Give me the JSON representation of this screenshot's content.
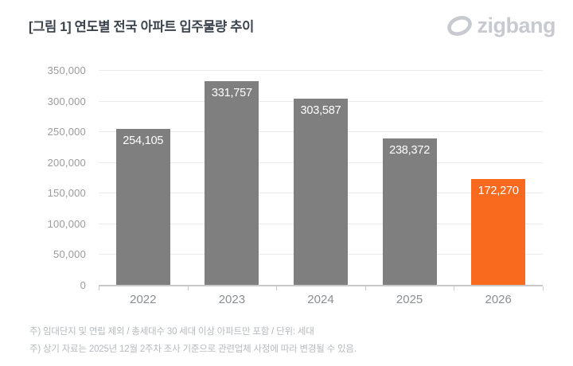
{
  "header": {
    "title": "[그림 1] 연도별 전국 아파트 입주물량 추이",
    "logo_text": "zigbang"
  },
  "chart_data": {
    "type": "bar",
    "title": "[그림 1] 연도별 전국 아파트 입주물량 추이",
    "categories": [
      "2022",
      "2023",
      "2024",
      "2025",
      "2026"
    ],
    "values": [
      254105,
      331757,
      303587,
      238372,
      172270
    ],
    "value_labels": [
      "254,105",
      "331,757",
      "303,587",
      "238,372",
      "172,270"
    ],
    "bar_colors": [
      "#7f7f7f",
      "#7f7f7f",
      "#7f7f7f",
      "#7f7f7f",
      "#f96a1e"
    ],
    "highlight_index": 4,
    "ylim": [
      0,
      350000
    ],
    "y_tick_step": 50000,
    "y_tick_labels": [
      "350,000",
      "300,000",
      "250,000",
      "200,000",
      "150,000",
      "100,000",
      "50,000",
      "0"
    ],
    "grid": "horizontal",
    "legend": "none",
    "xlabel": "",
    "ylabel": ""
  },
  "colors": {
    "bar_default": "#7f7f7f",
    "bar_highlight": "#f96a1e",
    "title_text": "#3a424c",
    "axis_text": "#9b9b9b",
    "logo_gray": "#c7cad0",
    "gridline": "#eaeaea",
    "footnote_text": "#b5b9bd"
  },
  "footnotes": {
    "line1": "주) 임대단지 및 연립 제외 / 총세대수 30 세대 이상 아파트만 포함 / 단위: 세대",
    "line2": "주) 상기 자료는 2025년 12월 2주차 조사 기준으로 관련업체 사정에 따라 변경될 수 있음."
  }
}
